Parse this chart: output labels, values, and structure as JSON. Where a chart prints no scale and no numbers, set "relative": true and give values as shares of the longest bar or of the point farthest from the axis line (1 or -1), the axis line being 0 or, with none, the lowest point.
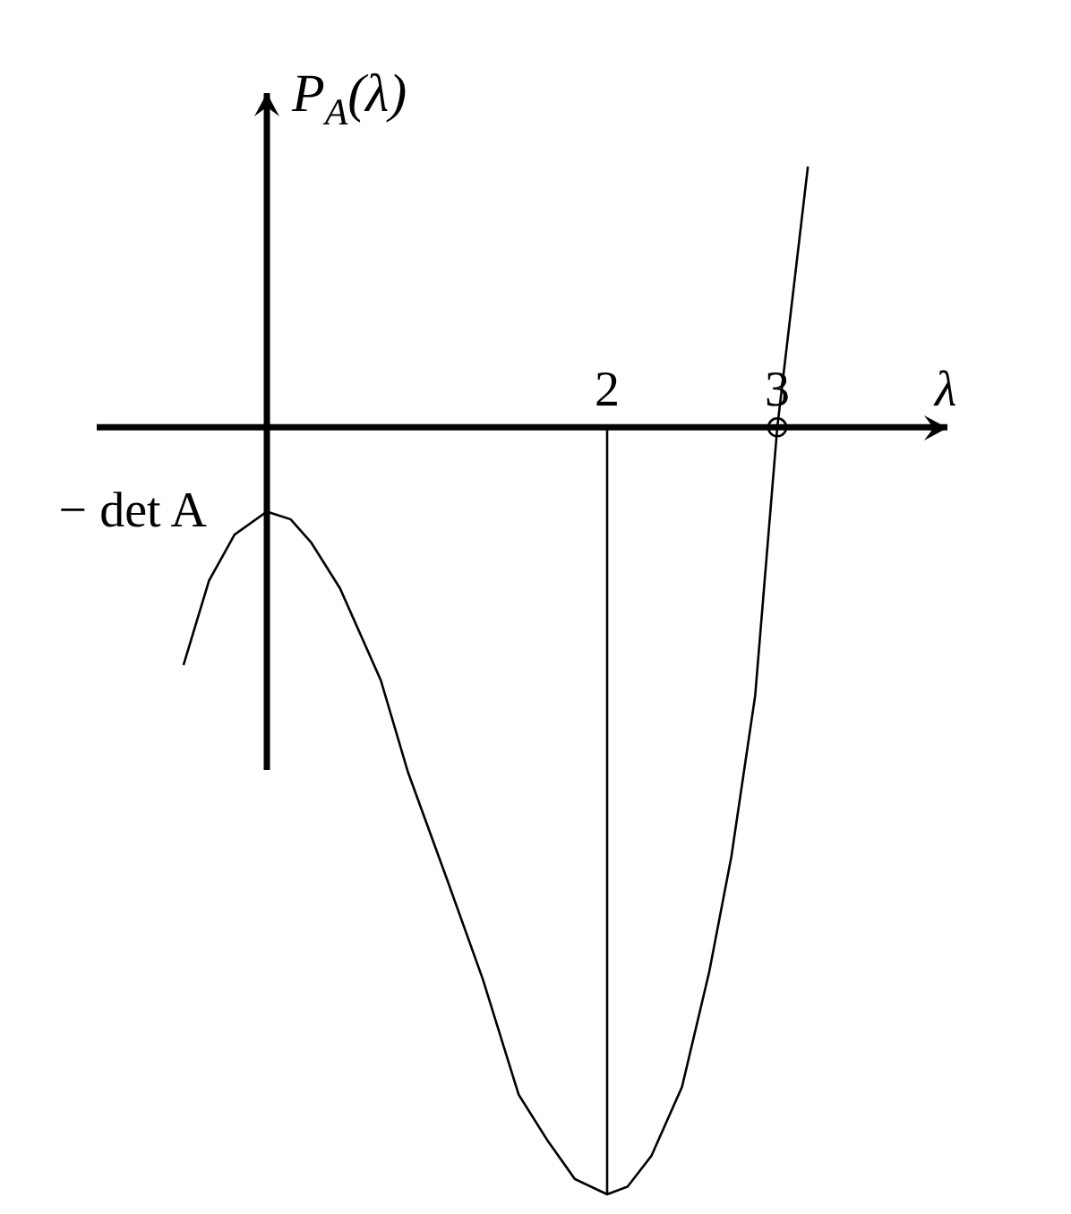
{
  "chart_data": {
    "type": "line",
    "xlabel": "λ",
    "ylabel": "P$_{A}$(λ)",
    "relative": true,
    "xlim": [
      -1,
      4
    ],
    "xticks": [
      2,
      3
    ],
    "tick_labels": "x",
    "annotations": [
      {
        "text": "− det A",
        "x": 0,
        "y": -0.11
      }
    ],
    "series": [
      {
        "type": "line",
        "color": "#000000",
        "x": [
          -0.49,
          -0.34,
          -0.19,
          0,
          0.14,
          0.26,
          0.43,
          0.67,
          0.83,
          1.06,
          1.27,
          1.48,
          1.65,
          1.81,
          2,
          2.12,
          2.26,
          2.44,
          2.6,
          2.73,
          2.83,
          2.87,
          3,
          3.18
        ],
        "values": [
          -0.31,
          -0.2,
          -0.14,
          -0.11,
          -0.12,
          -0.15,
          -0.21,
          -0.33,
          -0.45,
          -0.59,
          -0.72,
          -0.87,
          -0.93,
          -0.98,
          -1,
          -0.99,
          -0.95,
          -0.86,
          -0.71,
          -0.56,
          -0.41,
          -0.35,
          0,
          0.34
        ]
      },
      {
        "type": "line",
        "color": "#000000",
        "x": [
          2,
          2
        ],
        "values": [
          0,
          -1
        ]
      },
      {
        "type": "scatter",
        "color": "#000000",
        "marker": "circle",
        "x": [
          3
        ],
        "values": [
          0
        ]
      }
    ]
  }
}
